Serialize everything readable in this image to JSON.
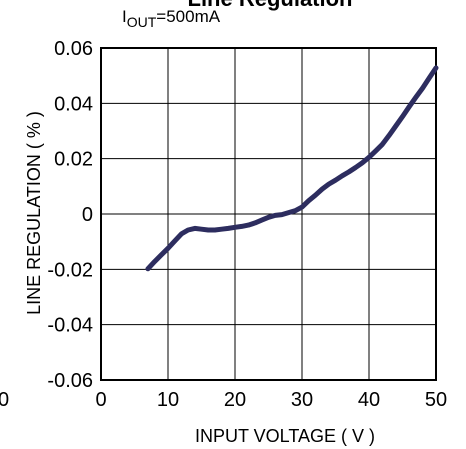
{
  "chart_data": {
    "type": "line",
    "title": "Line Regulation",
    "subtitle_main": "I",
    "subtitle_sub": "OUT",
    "subtitle_rest": "=500mA",
    "xlabel": "INPUT VOLTAGE ( V )",
    "ylabel": "LINE REGULATION ( % )",
    "xlim": [
      0,
      50
    ],
    "ylim": [
      -0.06,
      0.06
    ],
    "x_ticks": [
      0,
      10,
      20,
      30,
      40,
      50
    ],
    "x_tick_labels": [
      "0",
      "10",
      "20",
      "30",
      "40",
      "50"
    ],
    "y_ticks": [
      -0.06,
      -0.04,
      -0.02,
      0,
      0.02,
      0.04,
      0.06
    ],
    "y_tick_labels": [
      "-0.06",
      "-0.04",
      "-0.02",
      "0",
      "0.02",
      "0.04",
      "0.06"
    ],
    "stray_label": "0",
    "grid": true,
    "line_color": "#2d2d5f",
    "series": [
      {
        "x": [
          7,
          8,
          9,
          10,
          11,
          12,
          13,
          14,
          15,
          16,
          17,
          18,
          19,
          20,
          21,
          22,
          23,
          24,
          25,
          26,
          27,
          28,
          29,
          30,
          31,
          32,
          33,
          34,
          35,
          36,
          37,
          38,
          39,
          40,
          41,
          42,
          43,
          44,
          45,
          46,
          47,
          48,
          49,
          50
        ],
        "y": [
          -0.0198,
          -0.0172,
          -0.0148,
          -0.0124,
          -0.0098,
          -0.0072,
          -0.0058,
          -0.0052,
          -0.0055,
          -0.0058,
          -0.0058,
          -0.0055,
          -0.0052,
          -0.0048,
          -0.0045,
          -0.004,
          -0.0032,
          -0.0022,
          -0.0012,
          -0.0005,
          -0.0002,
          0.0005,
          0.0012,
          0.0025,
          0.0048,
          0.0068,
          0.009,
          0.0108,
          0.0122,
          0.0138,
          0.0152,
          0.0168,
          0.0185,
          0.0205,
          0.0228,
          0.0252,
          0.0284,
          0.0318,
          0.0352,
          0.0388,
          0.0422,
          0.0455,
          0.0492,
          0.0528
        ]
      }
    ]
  }
}
